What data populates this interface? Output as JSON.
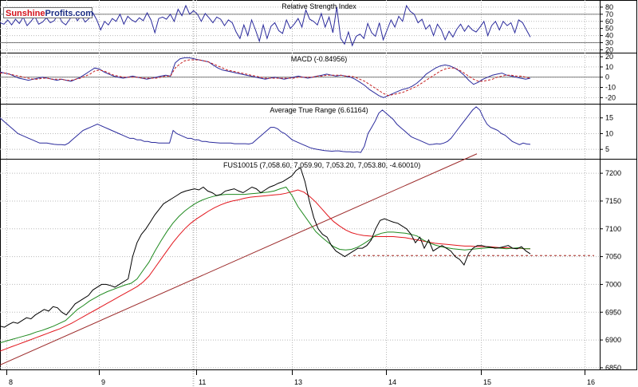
{
  "logo": {
    "part1": "Sunshine",
    "part2": "Profits.com"
  },
  "colors": {
    "price": "#000000",
    "ema_green": "#1f8a1f",
    "ema_red": "#e2161d",
    "trend": "#9c2a2a",
    "indicator": "#2a2a9c",
    "macd_signal": "#c41e1e",
    "support": "#a3231f"
  },
  "chart_data": [
    {
      "type": "line",
      "title": "Relative Strength Index",
      "y_ticks": [
        20,
        30,
        40,
        50,
        60,
        70,
        80
      ],
      "ylim": [
        16,
        90
      ],
      "hlines": [
        30,
        70
      ],
      "series": [
        {
          "values": [
            58,
            56,
            62,
            55,
            63,
            57,
            66,
            54,
            60,
            67,
            56,
            59,
            65,
            58,
            61,
            70,
            59,
            55,
            63,
            71,
            61,
            68,
            59,
            64,
            72,
            62,
            48,
            60,
            55,
            64,
            60,
            70,
            56,
            67,
            62,
            59,
            65,
            61,
            72,
            62,
            44,
            64,
            66,
            63,
            70,
            60,
            77,
            68,
            82,
            70,
            75,
            70,
            60,
            71,
            65,
            58,
            66,
            63,
            54,
            62,
            58,
            45,
            36,
            55,
            40,
            62,
            48,
            32,
            55,
            36,
            53,
            58,
            47,
            43,
            62,
            50,
            56,
            64,
            52,
            76,
            63,
            60,
            55,
            71,
            52,
            66,
            44,
            80,
            36,
            28,
            45,
            26,
            39,
            42,
            36,
            57,
            44,
            39,
            58,
            34,
            48,
            62,
            52,
            67,
            60,
            82,
            74,
            70,
            58,
            63,
            49,
            55,
            40,
            56,
            48,
            34,
            46,
            38,
            49,
            56,
            46,
            54,
            48,
            45,
            52,
            60,
            40,
            54,
            60,
            48,
            60,
            54,
            58,
            44,
            62,
            58,
            48,
            38
          ]
        }
      ]
    },
    {
      "type": "line",
      "title": "MACD (-0.84956)",
      "y_ticks": [
        -20,
        -10,
        0,
        10,
        20
      ],
      "ylim": [
        -26,
        24
      ],
      "hlines": [
        0
      ],
      "series": [
        {
          "values": [
            5,
            4,
            3,
            1,
            -1,
            -2,
            -3,
            -2,
            -1,
            0,
            -1,
            -2,
            -3,
            -2,
            -3,
            -4,
            -2,
            0,
            3,
            6,
            9,
            8,
            5,
            3,
            1,
            0,
            -1,
            0,
            1,
            0,
            -1,
            -2,
            -1,
            0,
            1,
            2,
            1,
            14,
            18,
            19,
            19,
            18,
            17,
            16,
            15,
            12,
            9,
            7,
            6,
            5,
            4,
            3,
            2,
            1,
            0,
            -1,
            -2,
            -1,
            0,
            -1,
            -2,
            -1,
            0,
            1,
            0,
            -1,
            0,
            1,
            2,
            3,
            2,
            1,
            2,
            1,
            0,
            -2,
            -5,
            -8,
            -12,
            -15,
            -18,
            -20,
            -18,
            -16,
            -14,
            -12,
            -11,
            -9,
            -6,
            -2,
            3,
            6,
            9,
            11,
            12,
            11,
            9,
            6,
            2,
            -3,
            -7,
            -5,
            -2,
            0,
            2,
            3,
            4,
            2,
            1,
            0,
            -1,
            -2,
            -1
          ]
        },
        {
          "values": [
            4,
            4,
            3,
            2,
            1,
            0,
            -1,
            -2,
            -2,
            -1,
            -1,
            -2,
            -2,
            -2,
            -3,
            -3,
            -2,
            -1,
            1,
            3,
            6,
            7,
            6,
            4,
            2,
            1,
            0,
            0,
            0,
            0,
            -1,
            -1,
            -1,
            -1,
            0,
            1,
            1,
            9,
            13,
            16,
            17,
            17,
            17,
            16,
            15,
            13,
            11,
            9,
            7,
            6,
            5,
            4,
            3,
            2,
            1,
            0,
            -1,
            -1,
            -1,
            -1,
            -1,
            -1,
            -1,
            0,
            0,
            0,
            0,
            1,
            1,
            2,
            2,
            2,
            2,
            1,
            1,
            0,
            -2,
            -4,
            -7,
            -10,
            -13,
            -16,
            -18,
            -17,
            -16,
            -15,
            -13,
            -11,
            -9,
            -6,
            -3,
            0,
            3,
            6,
            8,
            9,
            9,
            7,
            4,
            1,
            -2,
            -4,
            -4,
            -3,
            -2,
            0,
            1,
            2,
            2,
            1,
            1,
            0,
            -1
          ]
        }
      ]
    },
    {
      "type": "line",
      "title": "Average True Range (6.61164)",
      "y_ticks": [
        5,
        10,
        15
      ],
      "ylim": [
        2,
        19.5
      ],
      "series": [
        {
          "values": [
            15,
            14,
            13,
            12,
            11,
            10,
            9.5,
            9,
            8.5,
            8,
            7.5,
            7,
            7,
            7,
            6.8,
            6.6,
            6.5,
            6.5,
            6.4,
            7,
            8,
            9,
            10,
            11,
            11.5,
            12,
            12.5,
            13,
            12.5,
            12,
            11.5,
            11,
            10.5,
            10,
            9.5,
            9,
            8.5,
            8.5,
            8,
            8,
            7.5,
            7.5,
            7.2,
            7.2,
            7,
            7,
            7,
            7,
            11,
            10,
            9.5,
            9,
            8.5,
            8.5,
            8,
            8,
            7.5,
            7.5,
            7.3,
            7.2,
            7.1,
            7,
            7,
            7,
            7,
            6.8,
            6.8,
            6.8,
            6.8,
            6.7,
            7,
            8,
            9,
            10,
            11,
            12,
            12,
            11.5,
            10.5,
            10,
            9,
            8,
            7.5,
            7,
            6.5,
            6,
            5.5,
            5.2,
            5,
            4.8,
            4.6,
            4.5,
            4.4,
            4.5,
            4.5,
            4.3,
            4.2,
            4.2,
            4.1,
            4.2,
            4,
            6,
            10,
            12,
            14,
            16.5,
            17.5,
            16.5,
            15.5,
            14.5,
            13,
            12,
            11,
            10,
            9,
            8.5,
            8,
            7.5,
            7,
            6.5,
            6.6,
            6.8,
            6.7,
            7,
            7.5,
            8.5,
            10,
            11.5,
            13,
            14.5,
            16,
            17.5,
            18.5,
            17.5,
            15,
            13,
            12,
            11.5,
            11,
            10,
            9.5,
            8.5,
            7.5,
            7,
            6.5,
            7,
            6.7,
            6.6
          ]
        }
      ]
    },
    {
      "type": "line",
      "title": "FUS10015 (7,058.60, 7,059.90, 7,053.20, 7,053.80, -4.60010)",
      "x_ticks": [
        "8",
        "9",
        "11",
        "13",
        "14",
        "15",
        "16"
      ],
      "y_ticks": [
        6850,
        6900,
        6950,
        7000,
        7050,
        7100,
        7150,
        7200
      ],
      "ylim": [
        6847,
        7226
      ],
      "support_level": 7052,
      "series": [
        {
          "name": "price",
          "values": [
            6925,
            6923,
            6928,
            6932,
            6930,
            6935,
            6940,
            6938,
            6945,
            6950,
            6955,
            6952,
            6960,
            6958,
            6950,
            6945,
            6955,
            6965,
            6970,
            6975,
            6980,
            6990,
            6995,
            7000,
            7000,
            6998,
            6995,
            7000,
            7005,
            7010,
            7050,
            7075,
            7090,
            7100,
            7112,
            7125,
            7135,
            7145,
            7150,
            7155,
            7160,
            7165,
            7168,
            7170,
            7172,
            7170,
            7175,
            7168,
            7165,
            7160,
            7162,
            7168,
            7170,
            7172,
            7168,
            7165,
            7170,
            7175,
            7172,
            7165,
            7170,
            7175,
            7178,
            7182,
            7185,
            7190,
            7195,
            7205,
            7210,
            7185,
            7150,
            7120,
            7100,
            7090,
            7085,
            7070,
            7060,
            7055,
            7050,
            7055,
            7060,
            7065,
            7065,
            7070,
            7080,
            7100,
            7115,
            7118,
            7115,
            7112,
            7110,
            7105,
            7100,
            7090,
            7075,
            7085,
            7065,
            7080,
            7060,
            7065,
            7070,
            7065,
            7060,
            7050,
            7045,
            7035,
            7055,
            7065,
            7070,
            7070,
            7068,
            7067,
            7065,
            7066,
            7068,
            7070,
            7065,
            7064,
            7068,
            7060,
            7055
          ]
        },
        {
          "name": "ema_green",
          "values": [
            6895,
            6898,
            6901,
            6904,
            6907,
            6910,
            6914,
            6917,
            6921,
            6925,
            6930,
            6935,
            6945,
            6955,
            6962,
            6970,
            6976,
            6982,
            6987,
            6991,
            6995,
            6999,
            7002,
            7010,
            7025,
            7040,
            7060,
            7078,
            7095,
            7110,
            7122,
            7132,
            7140,
            7147,
            7152,
            7156,
            7159,
            7161,
            7162,
            7162,
            7162,
            7162,
            7163,
            7164,
            7165,
            7166,
            7168,
            7172,
            7175,
            7160,
            7140,
            7125,
            7110,
            7095,
            7085,
            7076,
            7068,
            7063,
            7062,
            7063,
            7067,
            7073,
            7080,
            7088,
            7092,
            7094,
            7094,
            7093,
            7092,
            7090,
            7087,
            7080,
            7075,
            7071,
            7068,
            7066,
            7064,
            7063,
            7062,
            7063,
            7064,
            7065,
            7066,
            7066,
            7065,
            7064,
            7065,
            7066,
            7064,
            7064
          ]
        },
        {
          "name": "ema_red",
          "values": [
            6880,
            6884,
            6888,
            6892,
            6896,
            6900,
            6904,
            6908,
            6912,
            6916,
            6920,
            6925,
            6930,
            6936,
            6942,
            6948,
            6954,
            6960,
            6966,
            6972,
            6978,
            6984,
            6990,
            6996,
            7004,
            7015,
            7030,
            7045,
            7060,
            7075,
            7088,
            7100,
            7110,
            7118,
            7125,
            7132,
            7138,
            7143,
            7147,
            7150,
            7152,
            7155,
            7157,
            7158,
            7159,
            7160,
            7161,
            7162,
            7164,
            7167,
            7170,
            7166,
            7158,
            7148,
            7136,
            7124,
            7113,
            7105,
            7098,
            7093,
            7090,
            7088,
            7087,
            7086,
            7086,
            7086,
            7086,
            7085,
            7084,
            7082,
            7080,
            7078,
            7076,
            7074,
            7073,
            7072,
            7071,
            7070,
            7069,
            7069,
            7068,
            7068,
            7068,
            7067,
            7066,
            7066,
            7065,
            7065,
            7064,
            7064
          ]
        },
        {
          "name": "trend_line",
          "values": [
            6855,
            7235
          ]
        }
      ]
    }
  ]
}
